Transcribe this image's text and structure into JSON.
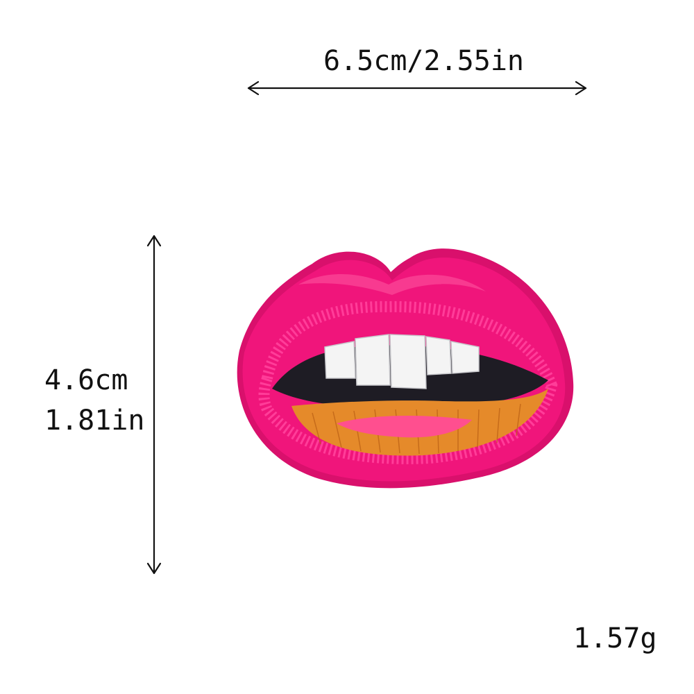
{
  "dimensions": {
    "width_text": "6.5cm/2.55in",
    "height_cm_text": "4.6cm",
    "height_in_text": "1.81in",
    "weight_text": "1.57g"
  },
  "colors": {
    "patch_pink": "#f0157b",
    "patch_edge": "#d9106c",
    "sequin_pink": "#ff3f9b",
    "teeth_white": "#f4f4f4",
    "mouth_dark": "#1e1c24",
    "tongue_orange": "#e58a2a",
    "tongue_pink": "#ff4f8f"
  }
}
